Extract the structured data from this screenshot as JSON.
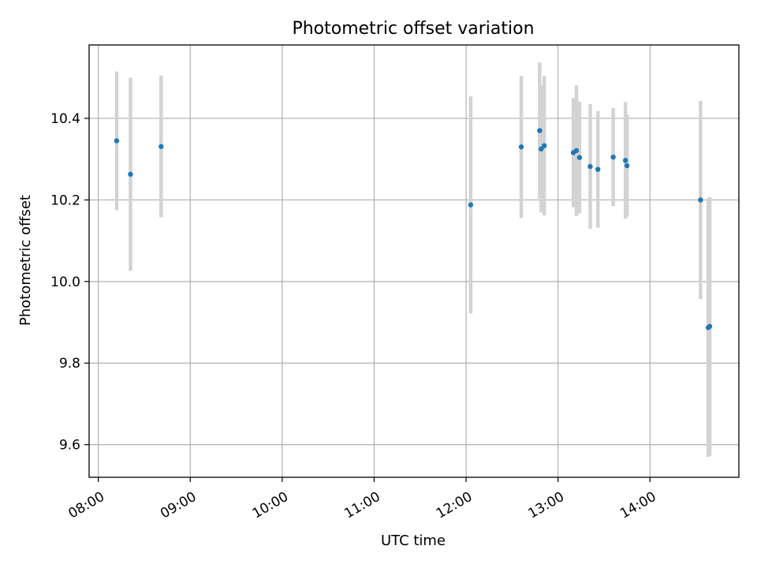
{
  "chart_data": {
    "type": "scatter",
    "title": "Photometric offset variation",
    "xlabel": "UTC time",
    "ylabel": "Photometric offset",
    "x_unit": "UTC time (HH:MM)",
    "xlim": [
      "07:54",
      "14:58"
    ],
    "ylim": [
      9.52,
      10.58
    ],
    "xticks": [
      "08:00",
      "09:00",
      "10:00",
      "11:00",
      "12:00",
      "13:00",
      "14:00"
    ],
    "yticks": [
      9.6,
      9.8,
      10.0,
      10.2,
      10.4
    ],
    "ytick_labels": [
      "9.6",
      "9.8",
      "10.0",
      "10.2",
      "10.4"
    ],
    "grid": true,
    "marker_color": "#1f77b4",
    "errorbar_color": "#d3d3d3",
    "points": [
      {
        "x": "08:12",
        "y": 10.345,
        "err": 0.17
      },
      {
        "x": "08:21",
        "y": 10.263,
        "err": 0.237
      },
      {
        "x": "08:41",
        "y": 10.331,
        "err": 0.174
      },
      {
        "x": "12:03",
        "y": 10.188,
        "err": 0.266
      },
      {
        "x": "12:36",
        "y": 10.33,
        "err": 0.174
      },
      {
        "x": "12:48",
        "y": 10.37,
        "err": 0.167
      },
      {
        "x": "12:49",
        "y": 10.325,
        "err": 0.156
      },
      {
        "x": "12:51",
        "y": 10.333,
        "err": 0.171
      },
      {
        "x": "13:10",
        "y": 10.316,
        "err": 0.134
      },
      {
        "x": "13:12",
        "y": 10.321,
        "err": 0.16
      },
      {
        "x": "13:14",
        "y": 10.304,
        "err": 0.137
      },
      {
        "x": "13:21",
        "y": 10.282,
        "err": 0.153
      },
      {
        "x": "13:26",
        "y": 10.275,
        "err": 0.143
      },
      {
        "x": "13:36",
        "y": 10.305,
        "err": 0.12
      },
      {
        "x": "13:44",
        "y": 10.297,
        "err": 0.143
      },
      {
        "x": "13:45",
        "y": 10.284,
        "err": 0.125
      },
      {
        "x": "14:33",
        "y": 10.2,
        "err": 0.243
      },
      {
        "x": "14:38",
        "y": 9.887,
        "err": 0.317
      },
      {
        "x": "14:39",
        "y": 9.89,
        "err": 0.317
      }
    ]
  }
}
